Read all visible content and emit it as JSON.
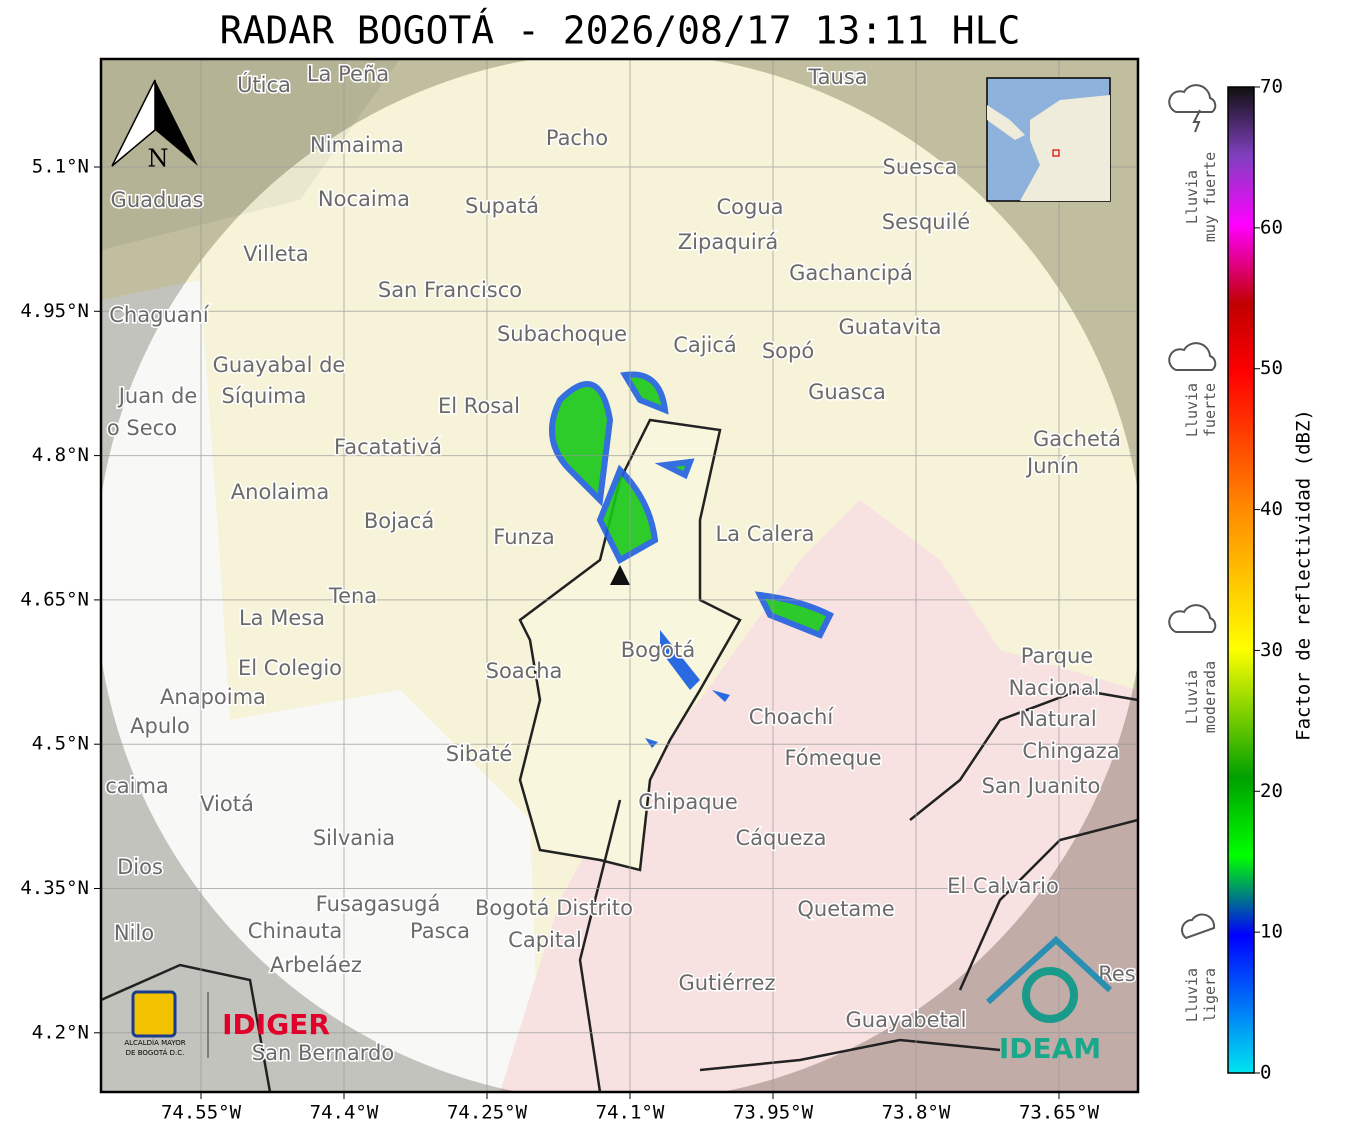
{
  "title": "RADAR BOGOTÁ - 2026/08/17 13:11 HLC",
  "map": {
    "lat_ticks": [
      {
        "value": 5.1,
        "label": "5.1°N"
      },
      {
        "value": 4.95,
        "label": "4.95°N"
      },
      {
        "value": 4.8,
        "label": "4.8°N"
      },
      {
        "value": 4.65,
        "label": "4.65°N"
      },
      {
        "value": 4.5,
        "label": "4.5°N"
      },
      {
        "value": 4.35,
        "label": "4.35°N"
      },
      {
        "value": 4.2,
        "label": "4.2°N"
      }
    ],
    "lon_ticks": [
      {
        "value": -74.55,
        "label": "74.55°W"
      },
      {
        "value": -74.4,
        "label": "74.4°W"
      },
      {
        "value": -74.25,
        "label": "74.25°W"
      },
      {
        "value": -74.1,
        "label": "74.1°W"
      },
      {
        "value": -73.95,
        "label": "73.95°W"
      },
      {
        "value": -73.8,
        "label": "73.8°W"
      },
      {
        "value": -73.65,
        "label": "73.65°W"
      }
    ],
    "north": "N",
    "places": [
      "La Peña",
      "Útica",
      "Tausa",
      "Pacho",
      "Nimaima",
      "Suesca",
      "Guaduas",
      "Nocaima",
      "Supatá",
      "Cogua",
      "Sesquilé",
      "Zipaquirá",
      "Villeta",
      "Gachancipá",
      "San Francisco",
      "Chaguaní",
      "Guatavita",
      "Subachoque",
      "Cajicá",
      "Sopó",
      "Guayabal de",
      "Síquima",
      "Juan de",
      "Guasca",
      "El Rosal",
      "o Seco",
      "Facatativá",
      "Gachetá",
      "Junín",
      "Anolaima",
      "Bojacá",
      "La Calera",
      "Funza",
      "Tena",
      "La Mesa",
      "Parque",
      "Bogotá",
      "El Colegio",
      "Soacha",
      "Nacional",
      "Anapoima",
      "Apulo",
      "Natural",
      "Choachí",
      "Chingaza",
      "Sibaté",
      "Fómeque",
      "San Juanito",
      "caima",
      "Viotá",
      "Chipaque",
      "Silvania",
      "Cáqueza",
      "Dios",
      "El Calvario",
      "Fusagasugá",
      "Bogotá Distrito",
      "Quetame",
      "Nilo",
      "Chinauta",
      "Pasca",
      "Capital",
      "Arbeláez",
      "Gutiérrez",
      "Res",
      "Guayabetal",
      "San Bernardo"
    ]
  },
  "logos": {
    "alcaldia": [
      "ALCALDÍA MAYOR",
      "DE BOGOTÁ D.C."
    ],
    "idiger": "IDIGER",
    "ideam": "IDEAM"
  },
  "colorbar": {
    "label": "Factor de reflectividad (dBZ)",
    "ticks": [
      0,
      10,
      20,
      30,
      40,
      50,
      60,
      70
    ]
  },
  "legend": [
    [
      "Lluvia",
      "muy fuerte"
    ],
    [
      "Lluvia",
      "fuerte"
    ],
    [
      "Lluvia",
      "moderada"
    ],
    [
      "Lluvia",
      "ligera"
    ]
  ]
}
